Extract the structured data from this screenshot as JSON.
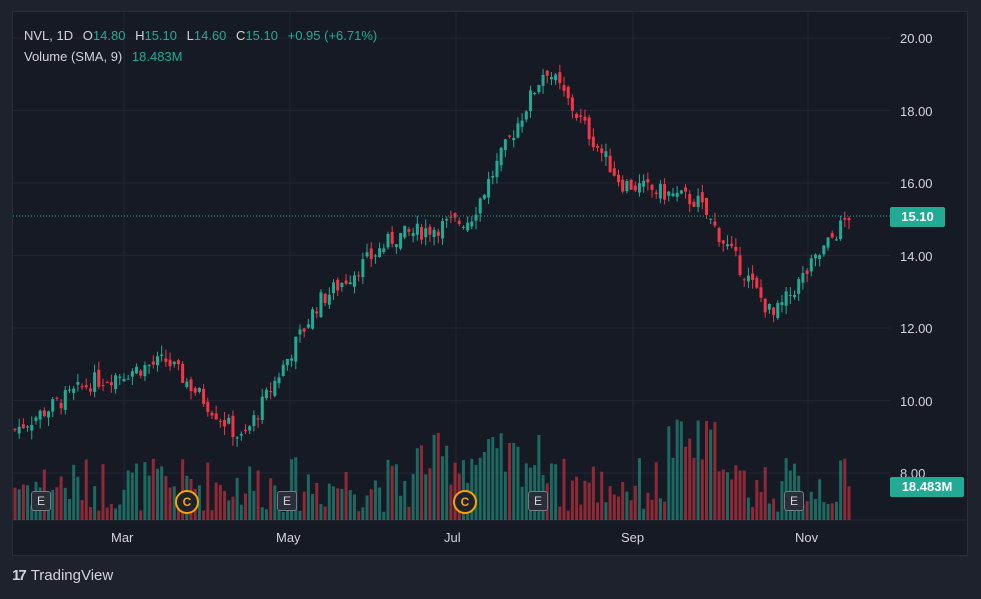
{
  "legend": {
    "symbol": "NVL",
    "interval": "1D",
    "open_label": "O",
    "open": "14.80",
    "high_label": "H",
    "high": "15.10",
    "low_label": "L",
    "low": "14.60",
    "close_label": "C",
    "close": "15.10",
    "change": "+0.95 (+6.71%)",
    "volume_label": "Volume (SMA, 9)",
    "volume_value": "18.483M"
  },
  "price_tag": "15.10",
  "volume_tag": "18.483M",
  "y_axis": [
    "20.00",
    "18.00",
    "16.00",
    "14.00",
    "12.00",
    "10.00",
    "8.00"
  ],
  "x_axis": [
    "Mar",
    "May",
    "Jul",
    "Sep",
    "Nov"
  ],
  "events": [
    {
      "type": "E",
      "label": "E"
    },
    {
      "type": "C",
      "label": "C"
    },
    {
      "type": "E",
      "label": "E"
    },
    {
      "type": "C",
      "label": "C"
    },
    {
      "type": "E",
      "label": "E"
    },
    {
      "type": "E",
      "label": "E"
    }
  ],
  "brand": "TradingView",
  "colors": {
    "up": "#22ab94",
    "down": "#f23645",
    "bg": "#161a25",
    "grid": "#232632"
  },
  "chart_data": {
    "type": "candlestick",
    "symbol": "NVL",
    "interval": "1D",
    "y_range": [
      7.5,
      20.6
    ],
    "last_price": 15.1,
    "key_points": [
      {
        "x": "Feb",
        "close": 9.2
      },
      {
        "x": "Mar",
        "close": 10.5
      },
      {
        "x": "mid-Mar",
        "close": 11.1
      },
      {
        "x": "early Apr",
        "close": 8.9
      },
      {
        "x": "May",
        "close": 12.7
      },
      {
        "x": "Jun",
        "close": 14.5
      },
      {
        "x": "Jul",
        "close": 15.0
      },
      {
        "x": "early Aug",
        "close": 19.2
      },
      {
        "x": "Sep",
        "close": 16.0
      },
      {
        "x": "Oct",
        "close": 15.5
      },
      {
        "x": "Nov",
        "close": 12.3
      },
      {
        "x": "last",
        "close": 15.1
      }
    ],
    "volume": {
      "indicator": "Volume (SMA, 9)",
      "last": "18.483M"
    }
  }
}
